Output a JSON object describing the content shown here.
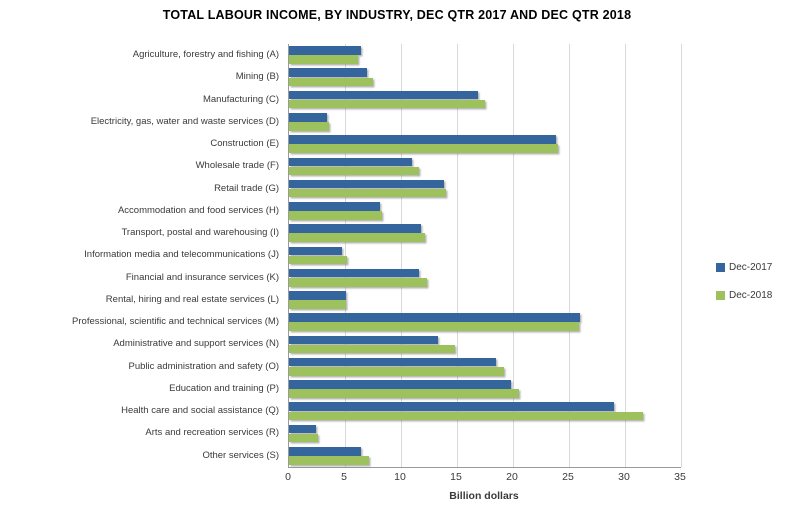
{
  "chart_data": {
    "type": "bar",
    "orientation": "horizontal",
    "title": "TOTAL LABOUR INCOME, BY INDUSTRY, DEC QTR 2017 AND DEC QTR 2018",
    "xlabel": "Billion dollars",
    "ylabel": "",
    "xlim": [
      0,
      35
    ],
    "xticks": [
      0,
      5,
      10,
      15,
      20,
      25,
      30,
      35
    ],
    "grid": true,
    "legend_position": "right",
    "categories": [
      "Agriculture, forestry and fishing (A)",
      "Mining (B)",
      "Manufacturing (C)",
      "Electricity, gas, water and waste services (D)",
      "Construction (E)",
      "Wholesale trade (F)",
      "Retail trade (G)",
      "Accommodation and food services (H)",
      "Transport, postal and warehousing (I)",
      "Information media and telecommunications (J)",
      "Financial and insurance services (K)",
      "Rental, hiring and real estate services (L)",
      "Professional, scientific and technical services (M)",
      "Administrative and support services (N)",
      "Public administration and safety (O)",
      "Education and training (P)",
      "Health care and social assistance (Q)",
      "Arts and recreation services (R)",
      "Other services (S)"
    ],
    "series": [
      {
        "name": "Dec-2017",
        "color": "#34659C",
        "values": [
          6.4,
          7.0,
          16.9,
          3.4,
          23.8,
          11.0,
          13.8,
          8.1,
          11.8,
          4.7,
          11.6,
          5.1,
          26.0,
          13.3,
          18.5,
          19.8,
          29.0,
          2.4,
          6.4
        ]
      },
      {
        "name": "Dec-2018",
        "color": "#9CC15D",
        "values": [
          6.2,
          7.5,
          17.5,
          3.6,
          24.0,
          11.6,
          14.0,
          8.3,
          12.1,
          5.2,
          12.3,
          5.1,
          25.9,
          14.8,
          19.2,
          20.5,
          31.6,
          2.6,
          7.1
        ]
      }
    ],
    "colors": {
      "gridline": "#d9d9d9",
      "axis_line": "#9a9a9a",
      "text": "#3a3a3a",
      "background": "#ffffff"
    }
  }
}
